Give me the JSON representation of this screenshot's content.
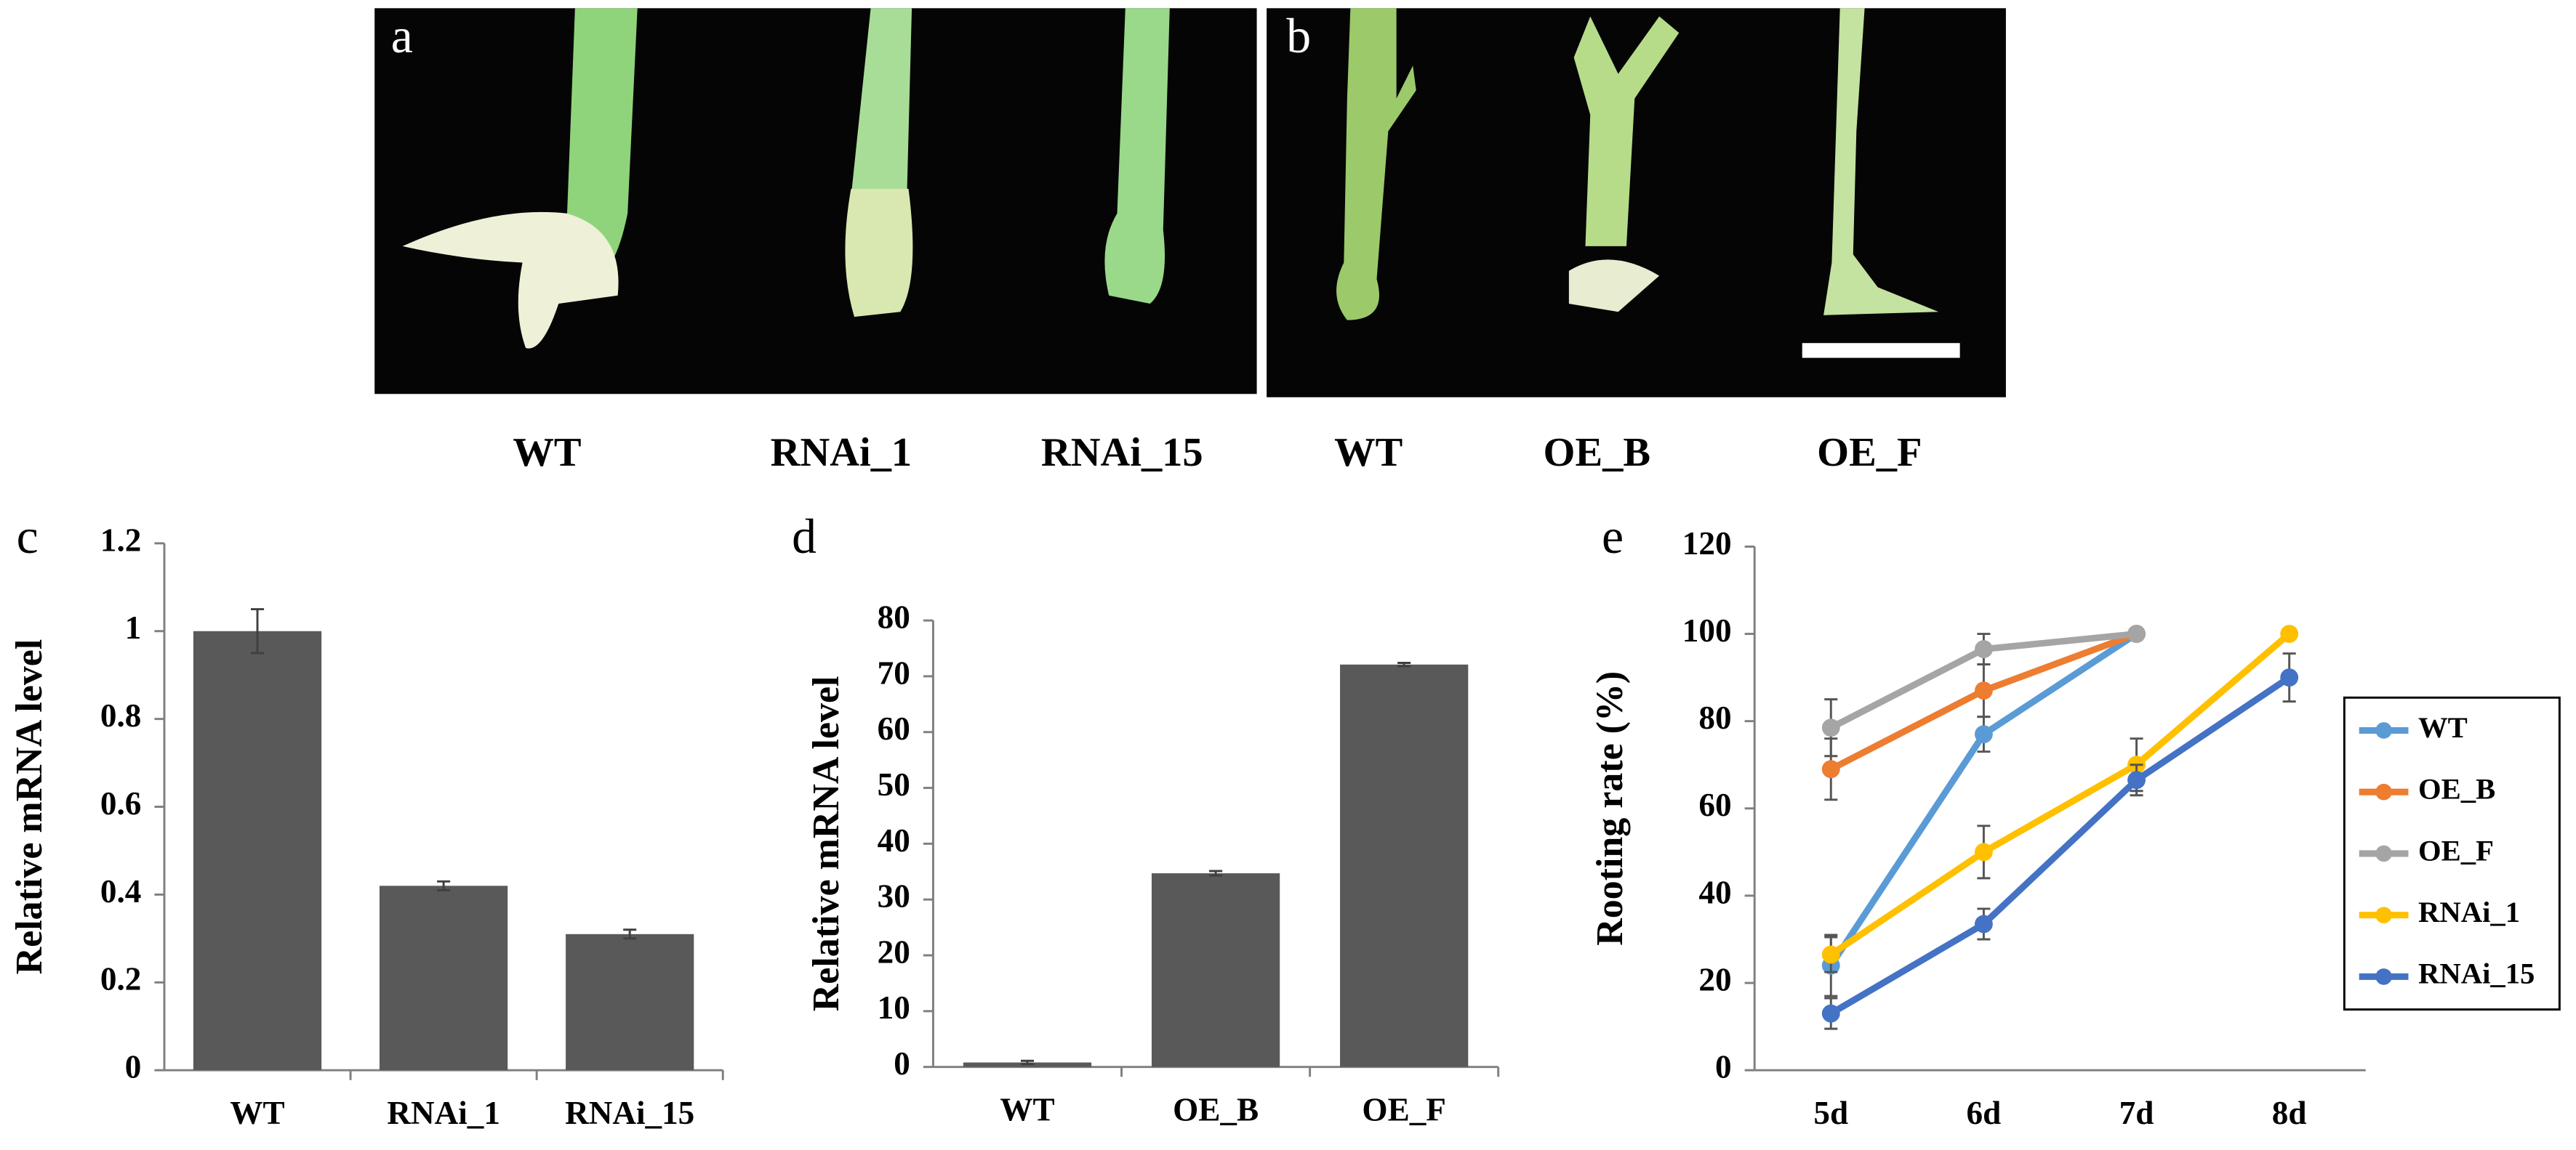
{
  "photo_panels": [
    {
      "label": "a",
      "captions": [
        "WT",
        "RNAi_1",
        "RNAi_15"
      ]
    },
    {
      "label": "b",
      "captions": [
        "WT",
        "OE_B",
        "OE_F"
      ]
    }
  ],
  "chart_data": [
    {
      "type": "bar",
      "panel_label": "c",
      "y_label": "Relative mRNA level",
      "categories": [
        "WT",
        "RNAi_1",
        "RNAi_15"
      ],
      "values": [
        1,
        0.42,
        0.31
      ],
      "errors": [
        0.05,
        0.01,
        0.01
      ],
      "color": "#595959",
      "ylim": [
        0,
        1.2
      ],
      "yticks": [
        0,
        0.2,
        0.4,
        0.6,
        0.8,
        1,
        1.2
      ]
    },
    {
      "type": "bar",
      "panel_label": "d",
      "y_label": "Relative mRNA level",
      "categories": [
        "WT",
        "OE_B",
        "OE_F"
      ],
      "values": [
        0.8,
        34.7,
        72.1
      ],
      "errors": [
        0.3,
        0.4,
        0.3
      ],
      "color": "#595959",
      "ylim": [
        0,
        80
      ],
      "yticks": [
        0,
        10,
        20,
        30,
        40,
        50,
        60,
        70,
        80
      ]
    },
    {
      "type": "line",
      "panel_label": "e",
      "y_label": "Rooting rate (%)",
      "categories": [
        "5d",
        "6d",
        "7d",
        "8d"
      ],
      "series": [
        {
          "name": "WT",
          "color": "#5b9bd5",
          "values": [
            24,
            77,
            100,
            null
          ],
          "errors": [
            7,
            4,
            0,
            null
          ]
        },
        {
          "name": "OE_B",
          "color": "#ed7d31",
          "values": [
            69,
            87,
            100,
            null
          ],
          "errors": [
            7,
            6,
            0,
            null
          ]
        },
        {
          "name": "OE_F",
          "color": "#a5a5a5",
          "values": [
            78.5,
            96.5,
            100,
            null
          ],
          "errors": [
            6.5,
            3.5,
            0,
            null
          ]
        },
        {
          "name": "RNAi_1",
          "color": "#ffc000",
          "values": [
            26.5,
            50,
            70,
            100
          ],
          "errors": [
            4,
            6,
            6,
            0
          ]
        },
        {
          "name": "RNAi_15",
          "color": "#4472c4",
          "values": [
            13,
            33.5,
            66.5,
            90
          ],
          "errors": [
            3.5,
            3.5,
            3.5,
            5.5
          ]
        }
      ],
      "ylim": [
        0,
        120
      ],
      "yticks": [
        0,
        20,
        40,
        60,
        80,
        100,
        120
      ],
      "legend": "right"
    }
  ]
}
